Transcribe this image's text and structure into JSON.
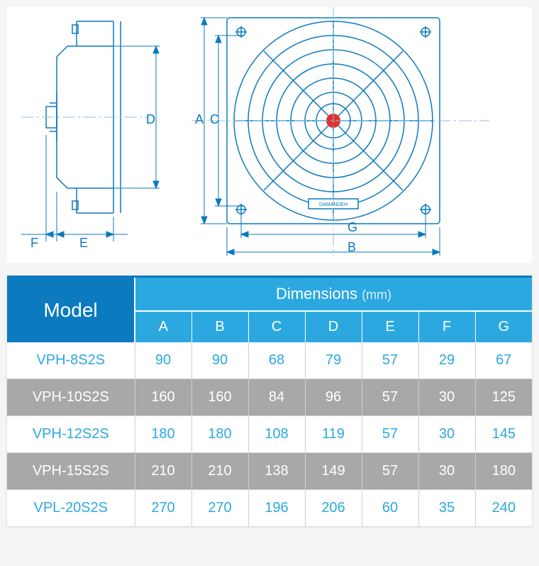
{
  "diagram": {
    "stroke": "#0b7abf",
    "centerline": "#8fbfe0",
    "brand": "DAMANDEH",
    "labels": [
      "A",
      "B",
      "C",
      "D",
      "E",
      "F",
      "G"
    ]
  },
  "table": {
    "header_bg_model": "#0b7abf",
    "header_bg_dim": "#2ca8e0",
    "model_label": "Model",
    "dim_label": "Dimensions",
    "unit": "(mm)",
    "columns": [
      "A",
      "B",
      "C",
      "D",
      "E",
      "F",
      "G"
    ],
    "rows": [
      {
        "model": "VPH-8S2S",
        "values": [
          90,
          90,
          68,
          79,
          57,
          29,
          67
        ],
        "alt": false
      },
      {
        "model": "VPH-10S2S",
        "values": [
          160,
          160,
          84,
          96,
          57,
          30,
          125
        ],
        "alt": true
      },
      {
        "model": "VPH-12S2S",
        "values": [
          180,
          180,
          108,
          119,
          57,
          30,
          145
        ],
        "alt": false
      },
      {
        "model": "VPH-15S2S",
        "values": [
          210,
          210,
          138,
          149,
          57,
          30,
          180
        ],
        "alt": true
      },
      {
        "model": "VPL-20S2S",
        "values": [
          270,
          270,
          196,
          206,
          60,
          35,
          240
        ],
        "alt": false
      }
    ]
  }
}
